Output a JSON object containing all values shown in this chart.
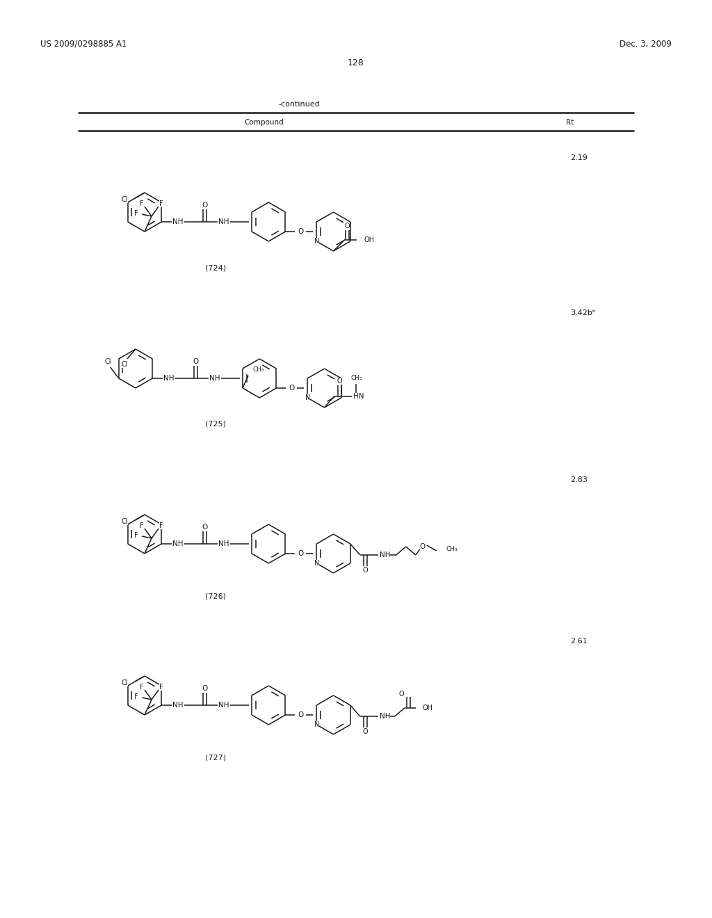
{
  "page_number": "128",
  "patent_number": "US 2009/0298885 A1",
  "patent_date": "Dec. 3, 2009",
  "table_header_left": "Compound",
  "table_header_right": "Rt",
  "continued_text": "-continued",
  "compounds": [
    {
      "id": "(724)",
      "rt": "2.19"
    },
    {
      "id": "(725)",
      "rt": "3.42b"
    },
    {
      "id": "(726)",
      "rt": "2.83"
    },
    {
      "id": "(727)",
      "rt": "2.61"
    }
  ],
  "background_color": "#ffffff",
  "text_color": "#000000"
}
